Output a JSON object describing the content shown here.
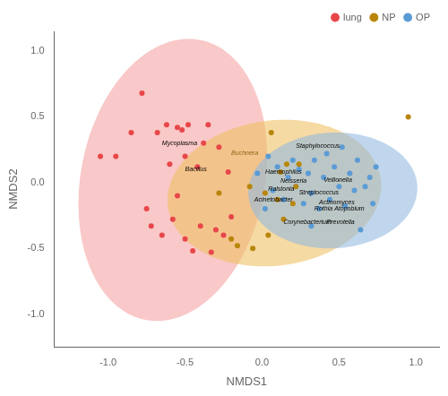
{
  "chart_data": {
    "type": "scatter",
    "x_label": "NMDS1",
    "y_label": "NMDS2",
    "xlim": [
      -1.35,
      1.15
    ],
    "ylim": [
      -1.25,
      1.15
    ],
    "xticks": [
      {
        "value": -1.0,
        "label": "-1.0"
      },
      -0.5,
      {
        "value": 0.0,
        "label": "0.0"
      },
      0.5,
      {
        "value": 1.0,
        "label": "1.0"
      }
    ],
    "yticks": [
      {
        "value": -1.0,
        "label": "-1.0"
      },
      -0.5,
      {
        "value": 0.0,
        "label": "0.0"
      },
      0.5,
      {
        "value": 1.0,
        "label": "1.0"
      }
    ],
    "grid": false,
    "legend": "upper right",
    "series": [
      {
        "name": "lung",
        "color": "#e8474a",
        "values": [
          [
            -1.05,
            0.2
          ],
          [
            -0.95,
            0.2
          ],
          [
            -0.85,
            0.38
          ],
          [
            -0.78,
            0.68
          ],
          [
            -0.75,
            -0.2
          ],
          [
            -0.72,
            -0.33
          ],
          [
            -0.68,
            0.38
          ],
          [
            -0.65,
            -0.4
          ],
          [
            -0.62,
            0.44
          ],
          [
            -0.58,
            -0.28
          ],
          [
            -0.55,
            0.42
          ],
          [
            -0.52,
            0.4
          ],
          [
            -0.5,
            0.2
          ],
          [
            -0.5,
            -0.43
          ],
          [
            -0.48,
            0.44
          ],
          [
            -0.45,
            -0.52
          ],
          [
            -0.42,
            0.12
          ],
          [
            -0.4,
            -0.33
          ],
          [
            -0.38,
            0.3
          ],
          [
            -0.35,
            0.44
          ],
          [
            -0.33,
            -0.53
          ],
          [
            -0.3,
            -0.36
          ],
          [
            -0.28,
            0.27
          ],
          [
            -0.25,
            -0.4
          ],
          [
            -0.22,
            0.08
          ],
          [
            -0.2,
            -0.26
          ],
          [
            -0.55,
            -0.1
          ],
          [
            -0.6,
            0.14
          ]
        ]
      },
      {
        "name": "NP",
        "color": "#b8860b",
        "values": [
          [
            -0.28,
            -0.08
          ],
          [
            -0.2,
            -0.43
          ],
          [
            -0.16,
            -0.48
          ],
          [
            -0.08,
            -0.03
          ],
          [
            -0.06,
            -0.5
          ],
          [
            0.02,
            -0.08
          ],
          [
            0.04,
            -0.4
          ],
          [
            0.06,
            0.38
          ],
          [
            0.1,
            -0.13
          ],
          [
            0.12,
            0.08
          ],
          [
            0.14,
            -0.28
          ],
          [
            0.16,
            0.14
          ],
          [
            0.2,
            -0.16
          ],
          [
            0.22,
            -0.03
          ],
          [
            0.24,
            0.14
          ],
          [
            0.95,
            0.5
          ]
        ]
      },
      {
        "name": "OP",
        "color": "#5b9bd5",
        "values": [
          [
            -0.03,
            0.07
          ],
          [
            0.02,
            -0.2
          ],
          [
            0.04,
            0.2
          ],
          [
            0.07,
            -0.06
          ],
          [
            0.1,
            0.12
          ],
          [
            0.14,
            -0.13
          ],
          [
            0.17,
            0.04
          ],
          [
            0.2,
            0.17
          ],
          [
            0.22,
            -0.03
          ],
          [
            0.24,
            0.1
          ],
          [
            0.27,
            -0.16
          ],
          [
            0.3,
            0.07
          ],
          [
            0.32,
            -0.08
          ],
          [
            0.34,
            0.17
          ],
          [
            0.37,
            -0.2
          ],
          [
            0.4,
            0.04
          ],
          [
            0.42,
            0.22
          ],
          [
            0.44,
            -0.13
          ],
          [
            0.47,
            0.12
          ],
          [
            0.5,
            -0.03
          ],
          [
            0.52,
            0.27
          ],
          [
            0.54,
            -0.18
          ],
          [
            0.57,
            0.07
          ],
          [
            0.6,
            -0.06
          ],
          [
            0.62,
            0.17
          ],
          [
            0.64,
            -0.36
          ],
          [
            0.67,
            -0.03
          ],
          [
            0.7,
            0.04
          ],
          [
            0.72,
            -0.16
          ],
          [
            0.74,
            0.12
          ],
          [
            0.32,
            -0.33
          ]
        ]
      }
    ],
    "ellipses": [
      {
        "cx": -0.58,
        "cy": 0.02,
        "width": 0.6,
        "height": 1.08,
        "angle": -8,
        "color": "#f4a0a0"
      },
      {
        "cx": 0.08,
        "cy": -0.08,
        "width": 0.7,
        "height": 0.55,
        "angle": 12,
        "color": "#f0c060"
      },
      {
        "cx": 0.46,
        "cy": -0.06,
        "width": 0.55,
        "height": 0.44,
        "angle": 5,
        "color": "#90b8e0"
      }
    ],
    "annotations": [
      {
        "text": "Mycoplasma",
        "x": -0.65,
        "y": 0.3,
        "color": "#000000"
      },
      {
        "text": "Bacillus",
        "x": -0.5,
        "y": 0.1,
        "color": "#000000"
      },
      {
        "text": "Buchnera",
        "x": -0.2,
        "y": 0.22,
        "color": "#8B6914"
      },
      {
        "text": "Staphylococcus",
        "x": 0.22,
        "y": 0.28,
        "color": "#000000"
      },
      {
        "text": "Haemophilus",
        "x": 0.02,
        "y": 0.08,
        "color": "#000000"
      },
      {
        "text": "Neisseria",
        "x": 0.12,
        "y": 0.01,
        "color": "#000000"
      },
      {
        "text": "Ralstonia",
        "x": 0.04,
        "y": -0.05,
        "color": "#000000"
      },
      {
        "text": "Acinetobacter",
        "x": -0.05,
        "y": -0.13,
        "color": "#000000"
      },
      {
        "text": "Veillonella",
        "x": 0.4,
        "y": 0.02,
        "color": "#000000"
      },
      {
        "text": "Streptococcus",
        "x": 0.24,
        "y": -0.08,
        "color": "#000000"
      },
      {
        "text": "Actinomyces",
        "x": 0.37,
        "y": -0.15,
        "color": "#000000"
      },
      {
        "text": "Rothia",
        "x": 0.34,
        "y": -0.2,
        "color": "#000000"
      },
      {
        "text": "Atopobium",
        "x": 0.47,
        "y": -0.2,
        "color": "#000000"
      },
      {
        "text": "Prevotella",
        "x": 0.42,
        "y": -0.3,
        "color": "#000000"
      },
      {
        "text": "Corynebacterium",
        "x": 0.14,
        "y": -0.3,
        "color": "#000000"
      }
    ]
  }
}
